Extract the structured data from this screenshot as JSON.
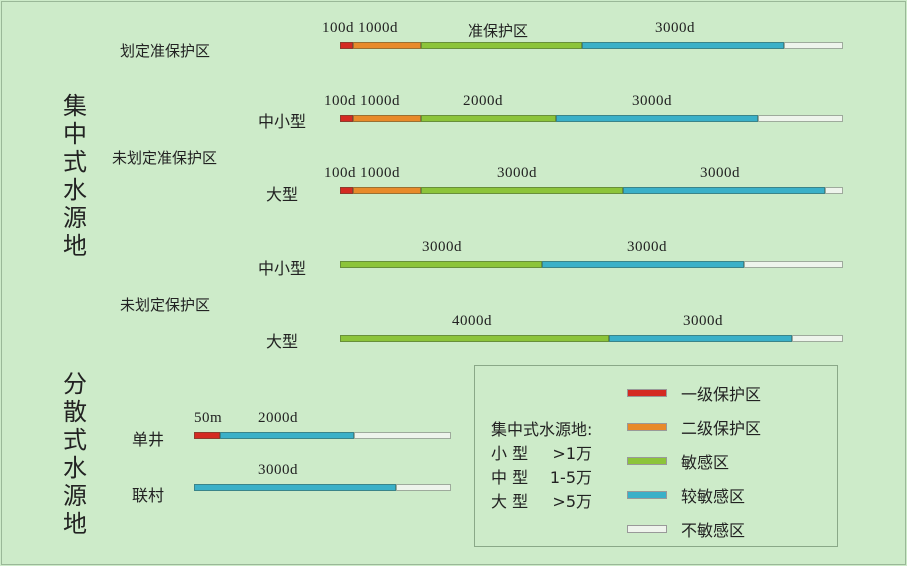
{
  "groups": {
    "centralized": "集中式水源地",
    "dispersed": "分散式水源地"
  },
  "rows": {
    "delimited": "划定准保护区",
    "undelimited_quasi": "未划定准保护区",
    "undelimited": "未划定保护区",
    "small_medium": "中小型",
    "large": "大型",
    "single_well": "单井",
    "village": "联村"
  },
  "bars": {
    "r1": [
      "100d",
      "1000d",
      "准保护区",
      "3000d"
    ],
    "r2": [
      "100d",
      "1000d",
      "2000d",
      "3000d"
    ],
    "r3": [
      "100d",
      "1000d",
      "3000d",
      "3000d"
    ],
    "r4": [
      "3000d",
      "3000d"
    ],
    "r5": [
      "4000d",
      "3000d"
    ],
    "r6": [
      "50m",
      "2000d"
    ],
    "r7": [
      "3000d"
    ]
  },
  "legend": {
    "size_title": "集中式水源地:",
    "sizes": [
      {
        "name": "小 型",
        "range": ">1万"
      },
      {
        "name": "中 型",
        "range": "1-5万"
      },
      {
        "name": "大 型",
        "range": ">5万"
      }
    ],
    "zones": [
      {
        "label": "一级保护区",
        "color": "#d42a22"
      },
      {
        "label": "二级保护区",
        "color": "#e88a2a"
      },
      {
        "label": "敏感区",
        "color": "#8cc43a"
      },
      {
        "label": "较敏感区",
        "color": "#3ab0c8"
      },
      {
        "label": "不敏感区",
        "color": "#eef4ec"
      }
    ]
  }
}
